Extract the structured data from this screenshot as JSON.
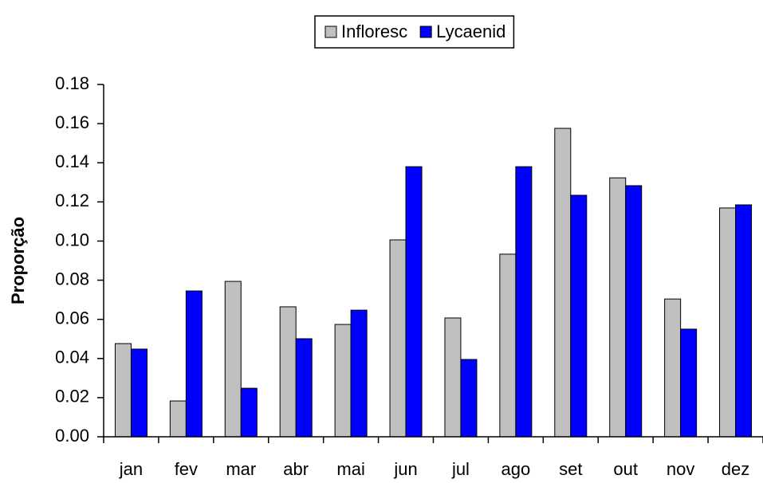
{
  "chart_data": {
    "type": "bar",
    "y_label": "Proporção",
    "categories": [
      "jan",
      "fev",
      "mar",
      "abr",
      "mai",
      "jun",
      "jul",
      "ago",
      "set",
      "out",
      "nov",
      "dez"
    ],
    "series": [
      {
        "name": "Infloresc",
        "color": "#c0c0c0",
        "values": [
          0.0476,
          0.0183,
          0.0794,
          0.0664,
          0.0574,
          0.1006,
          0.0607,
          0.0933,
          0.1576,
          0.1323,
          0.0704,
          0.1169
        ]
      },
      {
        "name": "Lycaenid",
        "color": "#0000ff",
        "values": [
          0.0448,
          0.0745,
          0.0248,
          0.0501,
          0.0647,
          0.138,
          0.0395,
          0.138,
          0.1234,
          0.1283,
          0.055,
          0.1185
        ]
      }
    ],
    "ylim": [
      0,
      0.18
    ],
    "yticks": [
      {
        "value": 0,
        "label": "0.00"
      },
      0.02,
      0.04,
      0.06,
      0.08,
      {
        "value": 0.1,
        "label": "0.10"
      },
      0.12,
      0.14,
      0.16,
      0.18
    ],
    "legend": "top",
    "grid": false
  }
}
